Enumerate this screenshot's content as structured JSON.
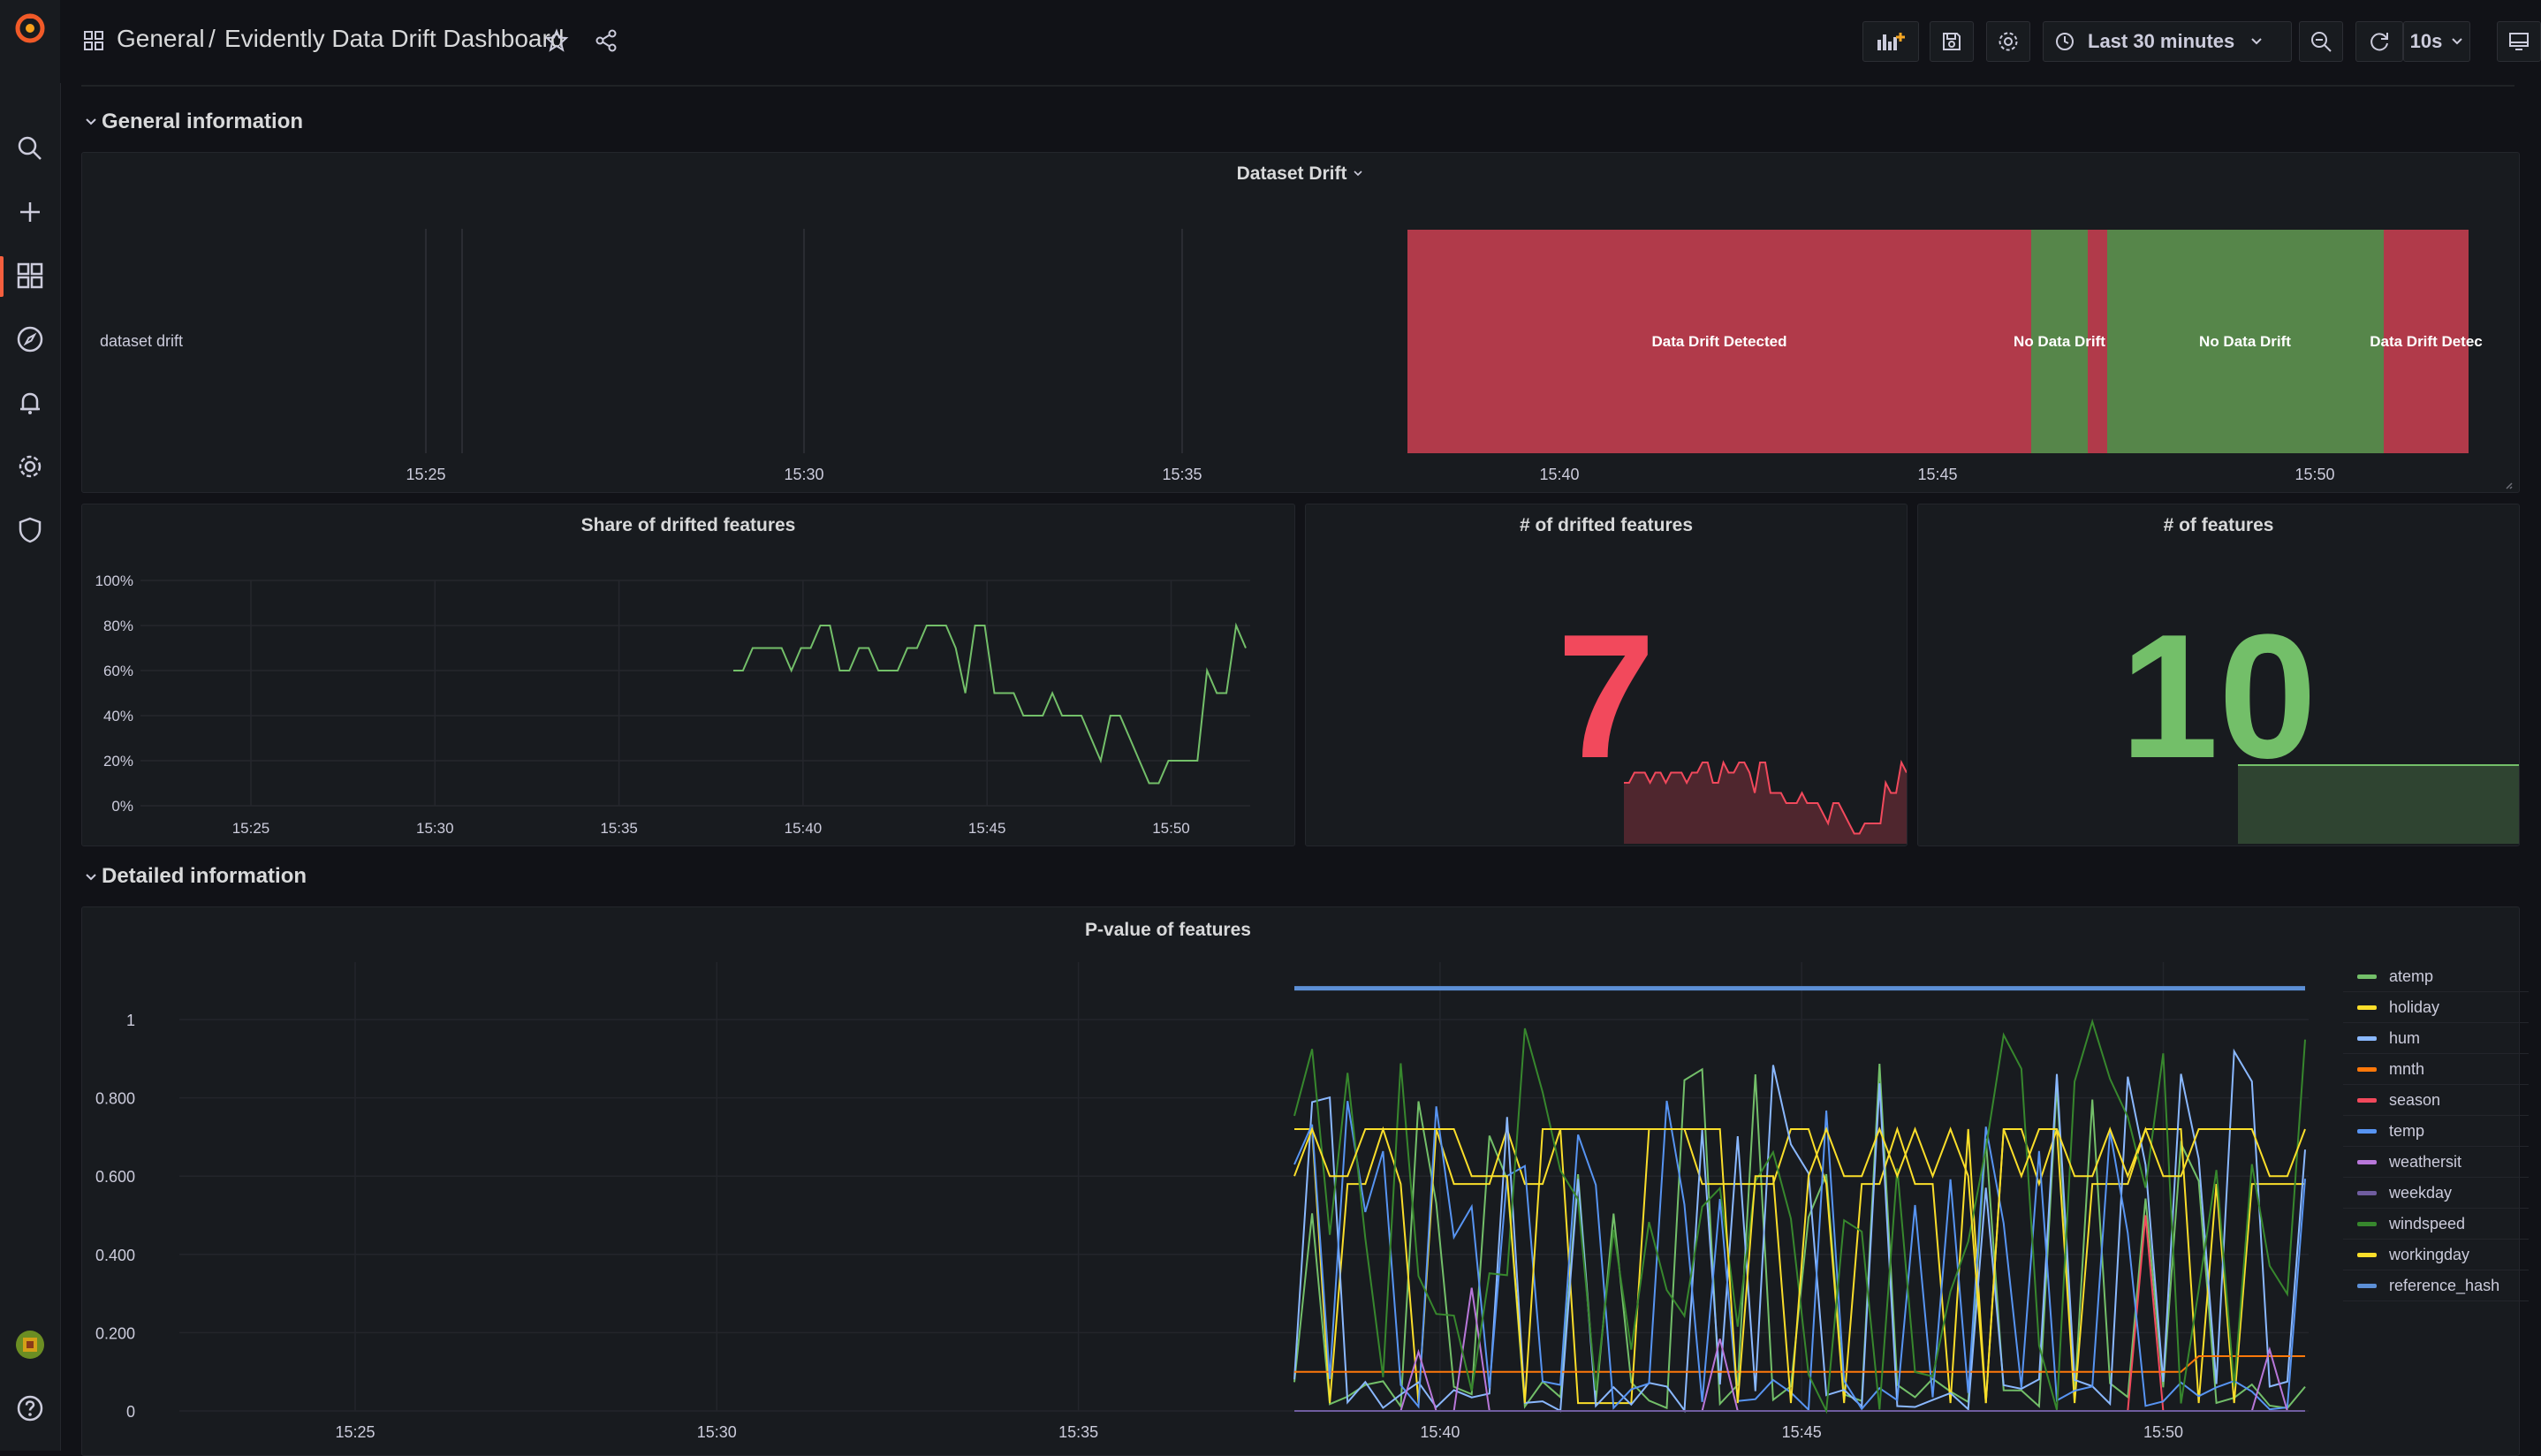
{
  "header": {
    "folder": "General",
    "separator": "/",
    "title": "Evidently Data Drift Dashboard",
    "time_range": "Last 30 minutes",
    "refresh_interval": "10s"
  },
  "sections": {
    "general": "General information",
    "detailed": "Detailed information"
  },
  "dataset_drift": {
    "title": "Dataset Drift",
    "row_label": "dataset drift",
    "x_ticks": [
      "15:25",
      "15:30",
      "15:35",
      "15:40",
      "15:45",
      "15:50"
    ],
    "states": [
      {
        "label": "Data Drift Detected",
        "color": "#b13a4a"
      },
      {
        "label": "No Data Drift",
        "color": "#56864a"
      },
      {
        "label": "No Data Drift",
        "color": "#56864a"
      },
      {
        "label": "Data Drift Detec",
        "color": "#b13a4a"
      }
    ]
  },
  "share_panel": {
    "title": "Share of drifted features"
  },
  "drifted_panel": {
    "title": "# of drifted features",
    "value": "7",
    "color": "#f2495c"
  },
  "features_panel": {
    "title": "# of features",
    "value": "10",
    "color": "#73bf69"
  },
  "pvalue_panel": {
    "title": "P-value of features",
    "legend": [
      {
        "name": "atemp",
        "color": "#73bf69"
      },
      {
        "name": "holiday",
        "color": "#fade2a"
      },
      {
        "name": "hum",
        "color": "#8ab8ff"
      },
      {
        "name": "mnth",
        "color": "#ff780a"
      },
      {
        "name": "season",
        "color": "#f2495c"
      },
      {
        "name": "temp",
        "color": "#5794f2"
      },
      {
        "name": "weathersit",
        "color": "#b877d9"
      },
      {
        "name": "weekday",
        "color": "#705da0"
      },
      {
        "name": "windspeed",
        "color": "#37872d"
      },
      {
        "name": "workingday",
        "color": "#fade2a"
      },
      {
        "name": "reference_hash",
        "color": "#5c8fd6"
      }
    ]
  },
  "chart_data": [
    {
      "type": "line",
      "title": "Share of drifted features",
      "x_ticks": [
        "15:25",
        "15:30",
        "15:35",
        "15:40",
        "15:45",
        "15:50"
      ],
      "y_ticks": [
        "0%",
        "20%",
        "40%",
        "60%",
        "80%",
        "100%"
      ],
      "ylim": [
        0,
        100
      ],
      "series": [
        {
          "color": "#73bf69",
          "values": [
            60,
            60,
            70,
            70,
            70,
            70,
            60,
            70,
            70,
            80,
            80,
            60,
            60,
            70,
            70,
            60,
            60,
            60,
            70,
            70,
            80,
            80,
            80,
            70,
            50,
            80,
            80,
            50,
            50,
            50,
            40,
            40,
            40,
            50,
            40,
            40,
            40,
            30,
            20,
            40,
            40,
            30,
            20,
            10,
            10,
            20,
            20,
            20,
            20,
            60,
            50,
            50,
            80,
            70
          ]
        }
      ]
    },
    {
      "type": "line",
      "title": "P-value of features",
      "x_ticks": [
        "15:25",
        "15:30",
        "15:35",
        "15:40",
        "15:45",
        "15:50"
      ],
      "y_ticks": [
        "0",
        "0.200",
        "0.400",
        "0.600",
        "0.800",
        "1"
      ],
      "ylim": [
        0,
        1.1
      ]
    }
  ]
}
